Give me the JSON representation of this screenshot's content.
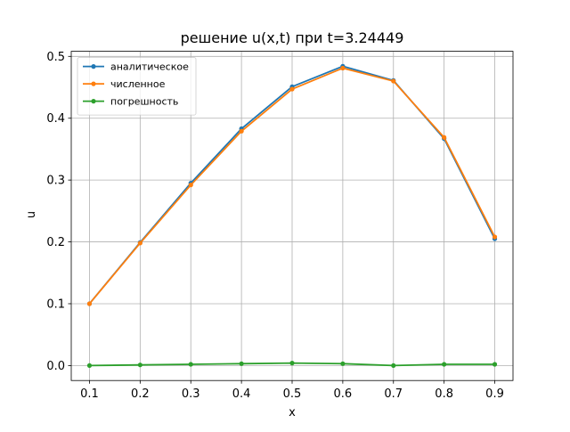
{
  "chart_data": {
    "type": "line",
    "title": "решение u(x,t) при t=3.24449",
    "xlabel": "x",
    "ylabel": "u",
    "xlim": [
      0.064,
      0.936
    ],
    "ylim": [
      -0.0242,
      0.5082
    ],
    "xticks": [
      0.1,
      0.2,
      0.3,
      0.4,
      0.5,
      0.6,
      0.7,
      0.8,
      0.9
    ],
    "yticks": [
      0.0,
      0.1,
      0.2,
      0.3,
      0.4,
      0.5
    ],
    "xtick_labels": [
      "0.1",
      "0.2",
      "0.3",
      "0.4",
      "0.5",
      "0.6",
      "0.7",
      "0.8",
      "0.9"
    ],
    "ytick_labels": [
      "0.0",
      "0.1",
      "0.2",
      "0.3",
      "0.4",
      "0.5"
    ],
    "grid": true,
    "legend_position": "top-left",
    "x": [
      0.1,
      0.2,
      0.3,
      0.4,
      0.5,
      0.6,
      0.7,
      0.8,
      0.9
    ],
    "series": [
      {
        "name": "аналитическое",
        "color": "#1f77b4",
        "marker": "circle",
        "values": [
          0.1,
          0.199,
          0.295,
          0.383,
          0.451,
          0.484,
          0.461,
          0.367,
          0.205
        ]
      },
      {
        "name": "численное",
        "color": "#ff7f0e",
        "marker": "circle",
        "values": [
          0.1,
          0.198,
          0.292,
          0.379,
          0.447,
          0.481,
          0.46,
          0.369,
          0.208
        ]
      },
      {
        "name": "погрешность",
        "color": "#2ca02c",
        "marker": "circle",
        "values": [
          0.0,
          0.001,
          0.002,
          0.003,
          0.004,
          0.003,
          0.0,
          0.002,
          0.002
        ]
      }
    ]
  }
}
